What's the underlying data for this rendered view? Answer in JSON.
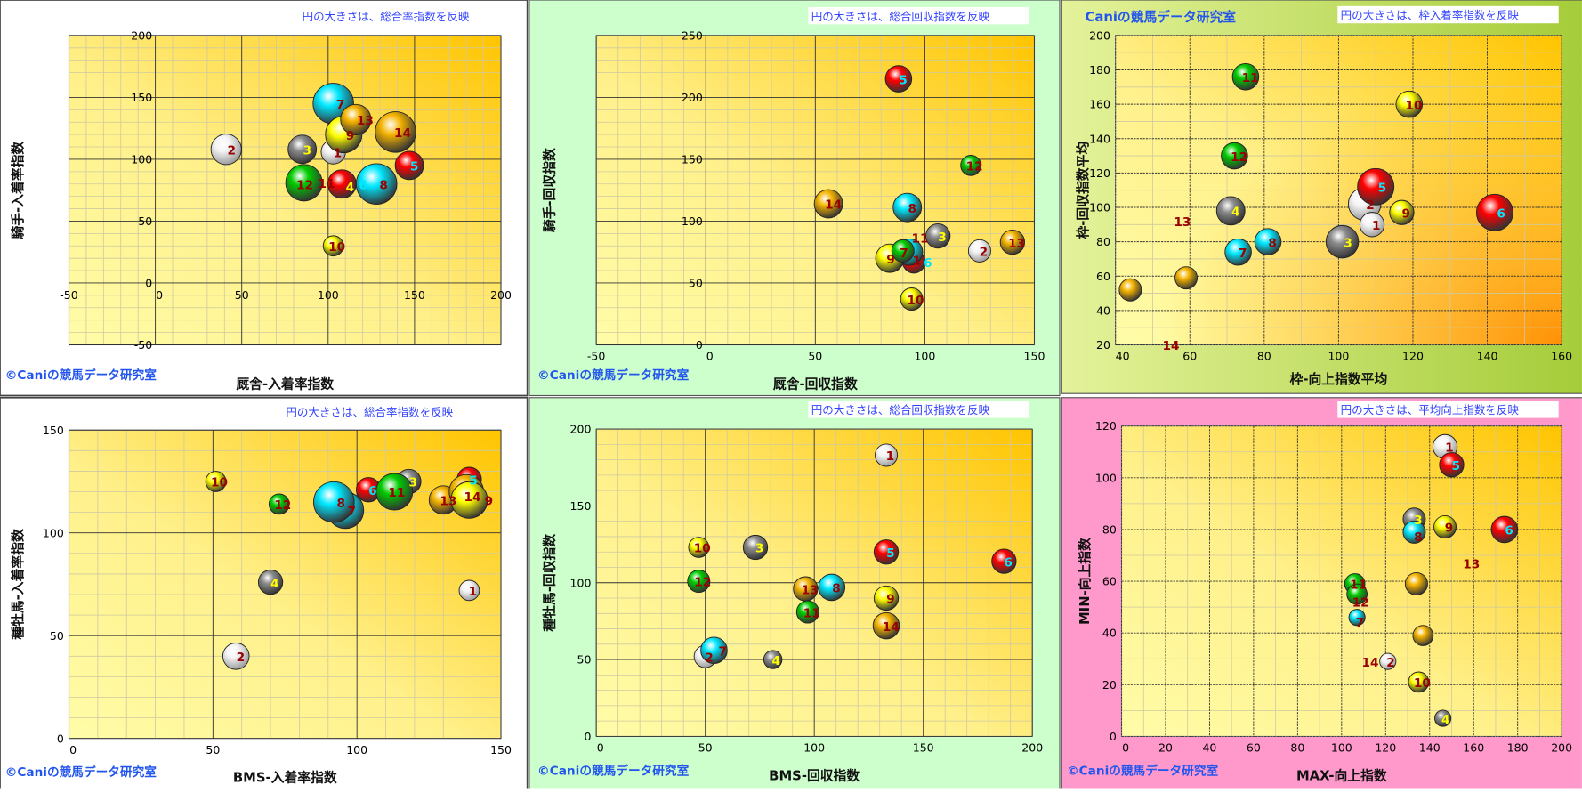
{
  "horse_colors": {
    "1": "#f4f4f4",
    "2": "#f4f4f4",
    "3": "#8a8a8a",
    "4": "#8a8a8a",
    "5": "#ff0000",
    "6": "#ff0000",
    "7": "#00e8ff",
    "8": "#00e8ff",
    "9": "#ffff00",
    "10": "#ffff00",
    "11": "#00cc00",
    "12": "#00cc00",
    "13": "#f5b400",
    "14": "#f5b400"
  },
  "label_colors": {
    "1": "#990000",
    "2": "#990000",
    "3": "#ffff00",
    "4": "#ffff00",
    "5": "#00e8ff",
    "6": "#00e8ff",
    "7": "#990000",
    "8": "#990000",
    "9": "#990000",
    "10": "#990000",
    "11": "#990000",
    "12": "#990000",
    "13": "#990000",
    "14": "#990000"
  },
  "chart_data": [
    {
      "type": "scatter",
      "subtype": "bubble",
      "note": "円の大きさは、総合率指数を反映",
      "copyright": "©Caniの競馬データ研究室",
      "xlabel": "厩舎-入着率指数",
      "ylabel": "騎手-入着率指数",
      "xlim": [
        -50,
        200
      ],
      "ylim": [
        -50,
        200
      ],
      "xticks": [
        -50,
        0,
        50,
        100,
        150,
        200
      ],
      "yticks": [
        -50,
        0,
        50,
        100,
        150,
        200
      ],
      "points": [
        {
          "n": "4",
          "x": 111,
          "y": 78,
          "bubble_value": 8
        },
        {
          "n": "12",
          "x": 84,
          "y": 80,
          "bubble_value": 12
        },
        {
          "n": "2",
          "x": 41,
          "y": 108,
          "bubble_value": 15
        },
        {
          "n": "3",
          "x": 85,
          "y": 108,
          "bubble_value": 14
        },
        {
          "n": "11",
          "x": 86,
          "y": 81,
          "bubble_value": 18
        },
        {
          "n": "6",
          "x": 108,
          "y": 80,
          "bubble_value": 14
        },
        {
          "n": "8",
          "x": 128,
          "y": 80,
          "bubble_value": 20
        },
        {
          "n": "5",
          "x": 147,
          "y": 95,
          "bubble_value": 14
        },
        {
          "n": "10",
          "x": 103,
          "y": 30,
          "bubble_value": 10
        },
        {
          "n": "7",
          "x": 103,
          "y": 145,
          "bubble_value": 20
        },
        {
          "n": "1",
          "x": 103,
          "y": 106,
          "bubble_value": 12
        },
        {
          "n": "9",
          "x": 109,
          "y": 120,
          "bubble_value": 18
        },
        {
          "n": "13",
          "x": 116,
          "y": 132,
          "bubble_value": 15
        },
        {
          "n": "14",
          "x": 139,
          "y": 122,
          "bubble_value": 20
        }
      ]
    },
    {
      "type": "scatter",
      "subtype": "bubble",
      "note": "円の大きさは、総合回収指数を反映",
      "copyright": "©Caniの競馬データ研究室",
      "xlabel": "厩舎-回収指数",
      "ylabel": "騎手-回収指数",
      "xlim": [
        -50,
        150
      ],
      "ylim": [
        0,
        250
      ],
      "xticks": [
        -50,
        0,
        50,
        100,
        150
      ],
      "yticks": [
        0,
        50,
        100,
        150,
        200,
        250
      ],
      "points": [
        {
          "n": "5",
          "x": 88,
          "y": 215,
          "bubble_value": 13
        },
        {
          "n": "14",
          "x": 56,
          "y": 114,
          "bubble_value": 14
        },
        {
          "n": "8",
          "x": 92,
          "y": 111,
          "bubble_value": 14
        },
        {
          "n": "12",
          "x": 121,
          "y": 145,
          "bubble_value": 10
        },
        {
          "n": "3",
          "x": 106,
          "y": 88,
          "bubble_value": 12
        },
        {
          "n": "2",
          "x": 125,
          "y": 76,
          "bubble_value": 11
        },
        {
          "n": "13",
          "x": 140,
          "y": 83,
          "bubble_value": 12
        },
        {
          "n": "1",
          "x": 95,
          "y": 69,
          "bubble_value": 8
        },
        {
          "n": "6",
          "x": 95,
          "y": 67,
          "bubble_value": 11
        },
        {
          "n": "7",
          "x": 93,
          "y": 75,
          "bubble_value": 13
        },
        {
          "n": "9",
          "x": 84,
          "y": 70,
          "bubble_value": 14
        },
        {
          "n": "11",
          "x": 90,
          "y": 76,
          "bubble_value": 11
        },
        {
          "n": "10",
          "x": 94,
          "y": 37,
          "bubble_value": 11
        }
      ]
    },
    {
      "type": "scatter",
      "subtype": "bubble",
      "title": "Caniの競馬データ研究室",
      "note": "円の大きさは、枠入着率指数を反映",
      "xlabel": "枠-向上指数平均",
      "ylabel": "枠-回収指数平均",
      "xlim": [
        40,
        160
      ],
      "ylim": [
        20,
        200
      ],
      "xticks": [
        40,
        60,
        80,
        100,
        120,
        140,
        160
      ],
      "yticks": [
        20,
        40,
        60,
        80,
        100,
        120,
        140,
        160,
        180,
        200
      ],
      "points": [
        {
          "n": "11",
          "x": 75,
          "y": 176,
          "bubble_value": 13
        },
        {
          "n": "12",
          "x": 72,
          "y": 130,
          "bubble_value": 13
        },
        {
          "n": "10",
          "x": 119,
          "y": 160,
          "bubble_value": 13
        },
        {
          "n": "4",
          "x": 71,
          "y": 98,
          "bubble_value": 14
        },
        {
          "n": "13",
          "x": 44,
          "y": 52,
          "bubble_value": 11,
          "label_at": [
            58,
            92
          ]
        },
        {
          "n": "14",
          "x": 59,
          "y": 59,
          "bubble_value": 11,
          "label_at": [
            56,
            20
          ]
        },
        {
          "n": "7",
          "x": 73,
          "y": 74,
          "bubble_value": 13
        },
        {
          "n": "8",
          "x": 81,
          "y": 80,
          "bubble_value": 13
        },
        {
          "n": "3",
          "x": 101,
          "y": 80,
          "bubble_value": 16
        },
        {
          "n": "2",
          "x": 107,
          "y": 102,
          "bubble_value": 16
        },
        {
          "n": "1",
          "x": 109,
          "y": 90,
          "bubble_value": 12
        },
        {
          "n": "9",
          "x": 117,
          "y": 97,
          "bubble_value": 12
        },
        {
          "n": "5",
          "x": 110,
          "y": 112,
          "bubble_value": 18
        },
        {
          "n": "6",
          "x": 142,
          "y": 97,
          "bubble_value": 18
        }
      ]
    },
    {
      "type": "scatter",
      "subtype": "bubble",
      "note": "円の大きさは、総合率指数を反映",
      "copyright": "©Caniの競馬データ研究室",
      "xlabel": "BMS-入着率指数",
      "ylabel": "種牡馬-入着率指数",
      "xlim": [
        0,
        150
      ],
      "ylim": [
        0,
        150
      ],
      "xticks": [
        0,
        50,
        100,
        150
      ],
      "yticks": [
        0,
        50,
        100,
        150
      ],
      "points": [
        {
          "n": "10",
          "x": 51,
          "y": 125,
          "bubble_value": 10
        },
        {
          "n": "12",
          "x": 73,
          "y": 114,
          "bubble_value": 10
        },
        {
          "n": "4",
          "x": 70,
          "y": 76,
          "bubble_value": 12
        },
        {
          "n": "2",
          "x": 58,
          "y": 40,
          "bubble_value": 13
        },
        {
          "n": "3",
          "x": 118,
          "y": 125,
          "bubble_value": 12
        },
        {
          "n": "6",
          "x": 104,
          "y": 121,
          "bubble_value": 12
        },
        {
          "n": "7",
          "x": 96,
          "y": 111,
          "bubble_value": 18
        },
        {
          "n": "8",
          "x": 92,
          "y": 115,
          "bubble_value": 20
        },
        {
          "n": "11",
          "x": 113,
          "y": 120,
          "bubble_value": 18
        },
        {
          "n": "5",
          "x": 139,
          "y": 126,
          "bubble_value": 12
        },
        {
          "n": "13",
          "x": 130,
          "y": 116,
          "bubble_value": 14
        },
        {
          "n": "14",
          "x": 138,
          "y": 120,
          "bubble_value": 17
        },
        {
          "n": "9",
          "x": 139,
          "y": 116,
          "bubble_value": 18
        },
        {
          "n": "1",
          "x": 139,
          "y": 72,
          "bubble_value": 10
        }
      ]
    },
    {
      "type": "scatter",
      "subtype": "bubble",
      "note": "円の大きさは、総合回収指数を反映",
      "copyright": "©Caniの競馬データ研究室",
      "xlabel": "BMS-回収指数",
      "ylabel": "種牡馬-回収指数",
      "xlim": [
        0,
        200
      ],
      "ylim": [
        0,
        200
      ],
      "xticks": [
        0,
        50,
        100,
        150,
        200
      ],
      "yticks": [
        0,
        50,
        100,
        150,
        200
      ],
      "points": [
        {
          "n": "1",
          "x": 133,
          "y": 183,
          "bubble_value": 11
        },
        {
          "n": "10",
          "x": 47,
          "y": 123,
          "bubble_value": 10
        },
        {
          "n": "3",
          "x": 73,
          "y": 123,
          "bubble_value": 12
        },
        {
          "n": "5",
          "x": 133,
          "y": 120,
          "bubble_value": 12
        },
        {
          "n": "6",
          "x": 187,
          "y": 114,
          "bubble_value": 12
        },
        {
          "n": "12",
          "x": 47,
          "y": 101,
          "bubble_value": 11
        },
        {
          "n": "13",
          "x": 96,
          "y": 96,
          "bubble_value": 12
        },
        {
          "n": "8",
          "x": 108,
          "y": 97,
          "bubble_value": 13
        },
        {
          "n": "9",
          "x": 133,
          "y": 90,
          "bubble_value": 12
        },
        {
          "n": "11",
          "x": 97,
          "y": 81,
          "bubble_value": 11
        },
        {
          "n": "14",
          "x": 133,
          "y": 72,
          "bubble_value": 13
        },
        {
          "n": "2",
          "x": 50,
          "y": 52,
          "bubble_value": 11
        },
        {
          "n": "7",
          "x": 54,
          "y": 56,
          "bubble_value": 13
        },
        {
          "n": "4",
          "x": 81,
          "y": 50,
          "bubble_value": 9
        }
      ]
    },
    {
      "type": "scatter",
      "subtype": "bubble",
      "note": "円の大きさは、平均向上指数を反映",
      "copyright": "©Caniの競馬データ研究室",
      "xlabel": "MAX-向上指数",
      "ylabel": "MIN-向上指数",
      "xlim": [
        0,
        200
      ],
      "ylim": [
        0,
        120
      ],
      "xticks": [
        0,
        20,
        40,
        60,
        80,
        100,
        120,
        140,
        160,
        180,
        200
      ],
      "yticks": [
        0,
        20,
        40,
        60,
        80,
        100,
        120
      ],
      "points": [
        {
          "n": "1",
          "x": 147,
          "y": 112,
          "bubble_value": 12
        },
        {
          "n": "5",
          "x": 150,
          "y": 105,
          "bubble_value": 12
        },
        {
          "n": "3",
          "x": 133,
          "y": 84,
          "bubble_value": 11
        },
        {
          "n": "8",
          "x": 133,
          "y": 79,
          "bubble_value": 11
        },
        {
          "n": "9",
          "x": 147,
          "y": 81,
          "bubble_value": 11
        },
        {
          "n": "6",
          "x": 174,
          "y": 80,
          "bubble_value": 13
        },
        {
          "n": "13",
          "x": 134,
          "y": 59,
          "bubble_value": 11,
          "label_at": [
            159,
            67
          ]
        },
        {
          "n": "14",
          "x": 137,
          "y": 39,
          "bubble_value": 10,
          "label_at": [
            113,
            29
          ]
        },
        {
          "n": "11",
          "x": 106,
          "y": 59,
          "bubble_value": 10
        },
        {
          "n": "12",
          "x": 107,
          "y": 55,
          "bubble_value": 10
        },
        {
          "n": "7",
          "x": 107,
          "y": 46,
          "bubble_value": 8
        },
        {
          "n": "2",
          "x": 121,
          "y": 29,
          "bubble_value": 8
        },
        {
          "n": "10",
          "x": 135,
          "y": 21,
          "bubble_value": 10
        },
        {
          "n": "4",
          "x": 146,
          "y": 7,
          "bubble_value": 8
        }
      ]
    }
  ]
}
